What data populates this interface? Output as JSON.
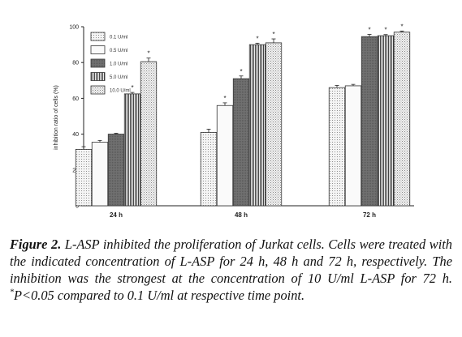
{
  "chart_data": {
    "type": "bar",
    "ylabel": "inhibition ratio of cells (%)",
    "ylim": [
      0,
      100
    ],
    "yticks": [
      "0",
      "20",
      "40",
      "60",
      "80",
      "100"
    ],
    "categories": [
      "24 h",
      "48 h",
      "72 h"
    ],
    "series": [
      {
        "name": "0.1 U/ml",
        "values": [
          31.5,
          41,
          66
        ],
        "errors": [
          1.5,
          1.8,
          1.2
        ],
        "pattern": "dots"
      },
      {
        "name": "0.5 U/ml",
        "values": [
          35.5,
          56,
          67
        ],
        "errors": [
          1.0,
          1.5,
          0.8
        ],
        "pattern": "blank"
      },
      {
        "name": "1.0 U/ml",
        "values": [
          40,
          71,
          94.5
        ],
        "errors": [
          0.5,
          1.5,
          1.2
        ],
        "pattern": "dark"
      },
      {
        "name": "5.0 U/ml",
        "values": [
          62.5,
          90,
          95
        ],
        "errors": [
          0.8,
          0.8,
          0.6
        ],
        "pattern": "vstripe"
      },
      {
        "name": "10.0 U/ml",
        "values": [
          80.5,
          91,
          97
        ],
        "errors": [
          2.0,
          2.2,
          0.6
        ],
        "pattern": "crosshatch"
      }
    ],
    "significance": [
      [
        false,
        false,
        false,
        true,
        true
      ],
      [
        false,
        true,
        true,
        true,
        true
      ],
      [
        false,
        false,
        true,
        true,
        true
      ]
    ],
    "star_symbol": "*",
    "legend_position": "top-left",
    "colors": {
      "dark": "#6a6a6a",
      "light": "#eeeeee",
      "stroke": "#333333"
    }
  },
  "caption": {
    "label": "Figure 2.",
    "text_1": " L-ASP inhibited the proliferation of Jurkat cells. Cells were treated with the indicated concentration of L-ASP for 24 h, 48 h and 72 h, respectively. The inhibition was the strongest at the concentration of 10 U/ml L-ASP for 72 h. ",
    "sup": "*",
    "text_2": "P<0.05 compared to 0.1 U/ml at respective time point."
  }
}
